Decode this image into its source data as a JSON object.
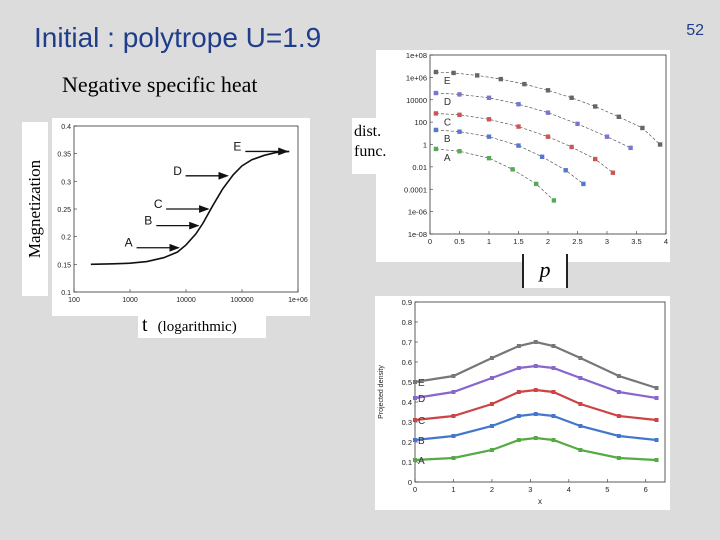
{
  "slide": {
    "title": "Initial : polytrope  U=1.9",
    "number": "52",
    "subtitle": "Negative specific heat",
    "ylabel_left": "Magnetization",
    "xlabel_left_t": "t",
    "xlabel_left_rest": "(logarithmic)",
    "dist_label": "dist.\nfunc.",
    "p_label": "p"
  },
  "colors": {
    "title": "#1f3d8a"
  },
  "chart_data": [
    {
      "type": "line",
      "title": "",
      "ylabel": "Magnetization",
      "xlabel": "t  (logarithmic)",
      "xscale": "log",
      "xlim": [
        100,
        1000000
      ],
      "ylim": [
        0.1,
        0.4
      ],
      "xticks": [
        "100",
        "1000",
        "10000",
        "100000",
        "1e+06"
      ],
      "yticks": [
        "0.1",
        "0.15",
        "0.2",
        "0.25",
        "0.3",
        "0.35",
        "0.4"
      ],
      "x": [
        200,
        500,
        1000,
        2000,
        4000,
        7000,
        10000,
        15000,
        20000,
        30000,
        45000,
        70000,
        100000,
        150000,
        250000,
        400000,
        700000
      ],
      "values": [
        0.15,
        0.151,
        0.152,
        0.155,
        0.162,
        0.172,
        0.185,
        0.205,
        0.224,
        0.256,
        0.286,
        0.312,
        0.328,
        0.339,
        0.347,
        0.352,
        0.354
      ],
      "annotations": [
        {
          "label": "A",
          "x": 8000,
          "y": 0.18
        },
        {
          "label": "B",
          "x": 18000,
          "y": 0.22
        },
        {
          "label": "C",
          "x": 27000,
          "y": 0.25
        },
        {
          "label": "D",
          "x": 60000,
          "y": 0.31
        },
        {
          "label": "E",
          "x": 700000,
          "y": 0.354
        }
      ]
    },
    {
      "type": "scatter",
      "title": "",
      "ylabel": "",
      "xlabel": "",
      "yscale": "log",
      "xlim": [
        0,
        4
      ],
      "ylim": [
        1e-08,
        100000000.0
      ],
      "xticks": [
        "0",
        "0.5",
        "1",
        "1.5",
        "2",
        "2.5",
        "3",
        "3.5",
        "4"
      ],
      "yticks": [
        "1e-08",
        "1e-06",
        "0.0001",
        "0.01",
        "1",
        "100",
        "10000",
        "1e+06",
        "1e+08"
      ],
      "series": [
        {
          "name": "E",
          "color": "#666666",
          "x": [
            0.1,
            0.4,
            0.8,
            1.2,
            1.6,
            2.0,
            2.4,
            2.8,
            3.2,
            3.6,
            3.9
          ],
          "values": [
            3000000,
            2500000,
            1500000,
            700000,
            250000,
            70000,
            15000,
            2500,
            300,
            30,
            1
          ]
        },
        {
          "name": "D",
          "color": "#7777cc",
          "x": [
            0.1,
            0.5,
            1.0,
            1.5,
            2.0,
            2.5,
            3.0,
            3.4
          ],
          "values": [
            40000,
            30000,
            15000,
            4000,
            700,
            70,
            5,
            0.5
          ]
        },
        {
          "name": "C",
          "color": "#cc5555",
          "x": [
            0.1,
            0.5,
            1.0,
            1.5,
            2.0,
            2.4,
            2.8,
            3.1
          ],
          "values": [
            600,
            450,
            180,
            40,
            5,
            0.6,
            0.05,
            0.003
          ]
        },
        {
          "name": "B",
          "color": "#5577cc",
          "x": [
            0.1,
            0.5,
            1.0,
            1.5,
            1.9,
            2.3,
            2.6
          ],
          "values": [
            20,
            14,
            5,
            0.8,
            0.08,
            0.005,
            0.0003
          ]
        },
        {
          "name": "A",
          "color": "#55aa55",
          "x": [
            0.1,
            0.5,
            1.0,
            1.4,
            1.8,
            2.1
          ],
          "values": [
            0.4,
            0.25,
            0.06,
            0.006,
            0.0003,
            1e-05
          ]
        }
      ]
    },
    {
      "type": "line",
      "title": "",
      "ylabel": "Projected density",
      "xlabel": "x",
      "xlim": [
        0,
        6.5
      ],
      "ylim": [
        0,
        0.9
      ],
      "xticks": [
        "0",
        "1",
        "2",
        "3",
        "4",
        "5",
        "6"
      ],
      "yticks": [
        "0",
        "0.1",
        "0.2",
        "0.3",
        "0.4",
        "0.5",
        "0.6",
        "0.7",
        "0.8",
        "0.9"
      ],
      "series": [
        {
          "name": "E",
          "color": "#777777",
          "x": [
            0,
            1,
            2,
            2.7,
            3.14,
            3.6,
            4.3,
            5.3,
            6.28
          ],
          "values": [
            0.5,
            0.53,
            0.62,
            0.68,
            0.7,
            0.68,
            0.62,
            0.53,
            0.47
          ]
        },
        {
          "name": "D",
          "color": "#8866cc",
          "x": [
            0,
            1,
            2,
            2.7,
            3.14,
            3.6,
            4.3,
            5.3,
            6.28
          ],
          "values": [
            0.42,
            0.45,
            0.52,
            0.57,
            0.58,
            0.57,
            0.52,
            0.45,
            0.42
          ]
        },
        {
          "name": "C",
          "color": "#cc4444",
          "x": [
            0,
            1,
            2,
            2.7,
            3.14,
            3.6,
            4.3,
            5.3,
            6.28
          ],
          "values": [
            0.31,
            0.33,
            0.39,
            0.45,
            0.46,
            0.45,
            0.39,
            0.33,
            0.31
          ]
        },
        {
          "name": "B",
          "color": "#4477cc",
          "x": [
            0,
            1,
            2,
            2.7,
            3.14,
            3.6,
            4.3,
            5.3,
            6.28
          ],
          "values": [
            0.21,
            0.23,
            0.28,
            0.33,
            0.34,
            0.33,
            0.28,
            0.23,
            0.21
          ]
        },
        {
          "name": "A",
          "color": "#55aa44",
          "x": [
            0,
            1,
            2,
            2.7,
            3.14,
            3.6,
            4.3,
            5.3,
            6.28
          ],
          "values": [
            0.11,
            0.12,
            0.16,
            0.21,
            0.22,
            0.21,
            0.16,
            0.12,
            0.11
          ]
        }
      ]
    }
  ]
}
